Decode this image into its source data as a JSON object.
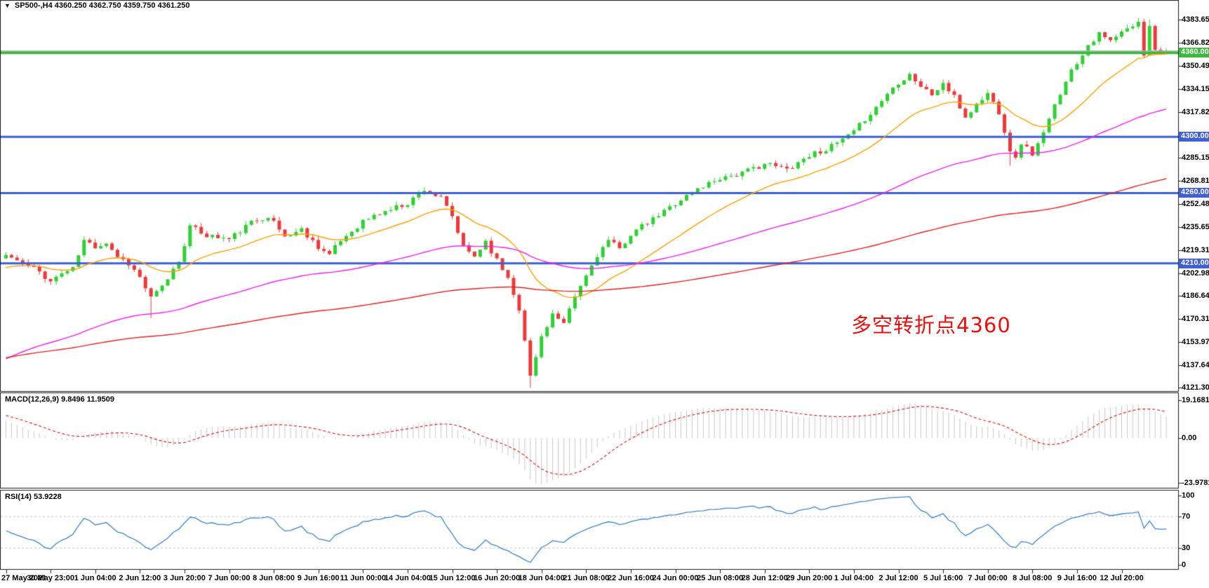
{
  "titlebar": {
    "dropdown_icon": "▼",
    "title_ohlc": "SP500-,H4  4360.250 4362.750 4359.750 4361.250"
  },
  "annotation": {
    "text": "多空转折点4360",
    "color": "#ec0f0f"
  },
  "macd_pane": {
    "label": "MACD(12,26,9) 9.8496 11.9509",
    "y_ticks": [
      {
        "text": "19.1681",
        "value": 19.1681
      },
      {
        "text": "0.00",
        "value": 0
      },
      {
        "text": "-23.9781",
        "value": -23.9781
      }
    ]
  },
  "rsi_pane": {
    "label": "RSI(14) 53.9228",
    "y_ticks": [
      {
        "text": "100",
        "value": 100
      },
      {
        "text": "70",
        "value": 70
      },
      {
        "text": "30",
        "value": 30
      },
      {
        "text": "0",
        "value": 0
      }
    ]
  },
  "price_axis": {
    "ticks": [
      {
        "text": "4383.655",
        "value": 4383.655
      },
      {
        "text": "4366.825",
        "value": 4366.825
      },
      {
        "text": "4350.490",
        "value": 4350.49
      },
      {
        "text": "4334.155",
        "value": 4334.155
      },
      {
        "text": "4317.820",
        "value": 4317.82
      },
      {
        "text": "4285.150",
        "value": 4285.15
      },
      {
        "text": "4268.815",
        "value": 4268.815
      },
      {
        "text": "4252.480",
        "value": 4252.48
      },
      {
        "text": "4235.650",
        "value": 4235.65
      },
      {
        "text": "4219.315",
        "value": 4219.315
      },
      {
        "text": "4202.980",
        "value": 4202.98
      },
      {
        "text": "4186.645",
        "value": 4186.645
      },
      {
        "text": "4170.310",
        "value": 4170.31
      },
      {
        "text": "4153.975",
        "value": 4153.975
      },
      {
        "text": "4137.640",
        "value": 4137.64
      },
      {
        "text": "4121.305",
        "value": 4121.305
      }
    ],
    "badges": [
      {
        "text": "4360.000",
        "value": 4360,
        "color": "#3cb83c"
      },
      {
        "text": "4300.000",
        "value": 4300,
        "color": "#3f5fd7"
      },
      {
        "text": "4260.000",
        "value": 4260,
        "color": "#3f5fd7"
      },
      {
        "text": "4210.000",
        "value": 4210,
        "color": "#3f5fd7"
      }
    ]
  },
  "time_axis": {
    "labels": [
      "27 May 2021",
      "30 May 23:00",
      "1 Jun 04:00",
      "2 Jun 12:00",
      "3 Jun 20:00",
      "7 Jun 00:00",
      "8 Jun 08:00",
      "9 Jun 16:00",
      "11 Jun 00:00",
      "14 Jun 04:00",
      "15 Jun 12:00",
      "16 Jun 20:00",
      "18 Jun 04:00",
      "21 Jun 08:00",
      "22 Jun 16:00",
      "24 Jun 00:00",
      "25 Jun 08:00",
      "28 Jun 12:00",
      "29 Jun 20:00",
      "1 Jul 04:00",
      "2 Jul 12:00",
      "5 Jul 16:00",
      "7 Jul 00:00",
      "8 Jul 08:00",
      "9 Jul 16:00",
      "12 Jul 20:00"
    ]
  },
  "chart_data": {
    "type": "candlestick",
    "symbol": "SP500-",
    "timeframe": "H4",
    "current_ohlc": {
      "open": 4360.25,
      "high": 4362.75,
      "low": 4359.75,
      "close": 4361.25
    },
    "visible_price_range": [
      4119,
      4397
    ],
    "candle_count": 209,
    "labels_every_n_candles": 8,
    "close_path_anchors": [
      [
        0,
        4216
      ],
      [
        3,
        4210
      ],
      [
        6,
        4204
      ],
      [
        8,
        4197
      ],
      [
        10,
        4203
      ],
      [
        12,
        4206
      ],
      [
        14,
        4226
      ],
      [
        16,
        4222
      ],
      [
        18,
        4225
      ],
      [
        20,
        4215
      ],
      [
        22,
        4210
      ],
      [
        24,
        4200
      ],
      [
        26,
        4185
      ],
      [
        28,
        4193
      ],
      [
        31,
        4212
      ],
      [
        33,
        4236
      ],
      [
        36,
        4230
      ],
      [
        40,
        4227
      ],
      [
        44,
        4239
      ],
      [
        47,
        4244
      ],
      [
        50,
        4229
      ],
      [
        53,
        4234
      ],
      [
        56,
        4222
      ],
      [
        58,
        4216
      ],
      [
        60,
        4226
      ],
      [
        64,
        4240
      ],
      [
        68,
        4247
      ],
      [
        72,
        4253
      ],
      [
        75,
        4263
      ],
      [
        78,
        4256
      ],
      [
        80,
        4243
      ],
      [
        82,
        4221
      ],
      [
        84,
        4215
      ],
      [
        86,
        4226
      ],
      [
        88,
        4212
      ],
      [
        90,
        4200
      ],
      [
        92,
        4178
      ],
      [
        94,
        4130
      ],
      [
        95,
        4143
      ],
      [
        96,
        4158
      ],
      [
        98,
        4174
      ],
      [
        100,
        4166
      ],
      [
        102,
        4186
      ],
      [
        104,
        4201
      ],
      [
        106,
        4216
      ],
      [
        108,
        4226
      ],
      [
        110,
        4220
      ],
      [
        112,
        4231
      ],
      [
        116,
        4241
      ],
      [
        120,
        4253
      ],
      [
        124,
        4263
      ],
      [
        128,
        4271
      ],
      [
        132,
        4274
      ],
      [
        136,
        4281
      ],
      [
        140,
        4277
      ],
      [
        144,
        4287
      ],
      [
        148,
        4293
      ],
      [
        152,
        4303
      ],
      [
        154,
        4313
      ],
      [
        156,
        4321
      ],
      [
        158,
        4331
      ],
      [
        160,
        4339
      ],
      [
        162,
        4345
      ],
      [
        164,
        4336
      ],
      [
        166,
        4330
      ],
      [
        168,
        4338
      ],
      [
        170,
        4328
      ],
      [
        172,
        4314
      ],
      [
        174,
        4323
      ],
      [
        176,
        4331
      ],
      [
        178,
        4318
      ],
      [
        180,
        4291
      ],
      [
        181,
        4284
      ],
      [
        182,
        4296
      ],
      [
        184,
        4288
      ],
      [
        186,
        4302
      ],
      [
        188,
        4322
      ],
      [
        190,
        4341
      ],
      [
        192,
        4353
      ],
      [
        194,
        4366
      ],
      [
        196,
        4373
      ],
      [
        198,
        4368
      ],
      [
        200,
        4374
      ],
      [
        202,
        4379
      ],
      [
        203,
        4382
      ],
      [
        204,
        4358
      ],
      [
        205,
        4379
      ],
      [
        206,
        4362
      ],
      [
        207,
        4360.5
      ],
      [
        208,
        4361.25
      ]
    ],
    "pinned_indices": [
      0,
      94,
      203,
      204,
      205,
      206,
      207,
      208
    ],
    "wick_overrides": {
      "26": {
        "low": 4171
      },
      "94": {
        "low": 4121.3
      },
      "180": {
        "low": 4279.5
      },
      "203": {
        "high": 4384.6
      },
      "205": {
        "high": 4383.5
      }
    },
    "noise_amplitude": 2.0,
    "seed": 11,
    "candle_colors": {
      "up": "#2ed133",
      "down": "#ef3838"
    },
    "moving_averages": [
      {
        "name": "ma-fast",
        "period": 20,
        "init": 4206,
        "color": "#ffa000"
      },
      {
        "name": "ma-mid",
        "period": 80,
        "init": 4140,
        "color": "#f320f3"
      },
      {
        "name": "ma-slow",
        "period": 200,
        "init": 4142,
        "color": "#e62222"
      }
    ],
    "horizontal_lines": [
      {
        "price": 4360,
        "color": "#3cb83c",
        "width": 4
      },
      {
        "price": 4300,
        "color": "#3f5fd7",
        "width": 3
      },
      {
        "price": 4260,
        "color": "#3f5fd7",
        "width": 3
      },
      {
        "price": 4210,
        "color": "#3f5fd7",
        "width": 3
      }
    ],
    "bid_line": {
      "price": 4361.25,
      "color": "#b0b0b0"
    },
    "indicators": {
      "macd": {
        "fast": 12,
        "slow": 26,
        "signal": 9,
        "display_values": [
          9.8496,
          11.9509
        ],
        "axis_range": [
          19.1681,
          -23.9781
        ],
        "histogram_color": "#c8c8c8",
        "signal_color": "#e02020"
      },
      "rsi": {
        "period": 14,
        "display_value": 53.9228,
        "levels": [
          70,
          30
        ],
        "axis_range": [
          0,
          100
        ],
        "line_color": "#3d85c8",
        "level_line_color": "#c4c4c4"
      }
    }
  }
}
